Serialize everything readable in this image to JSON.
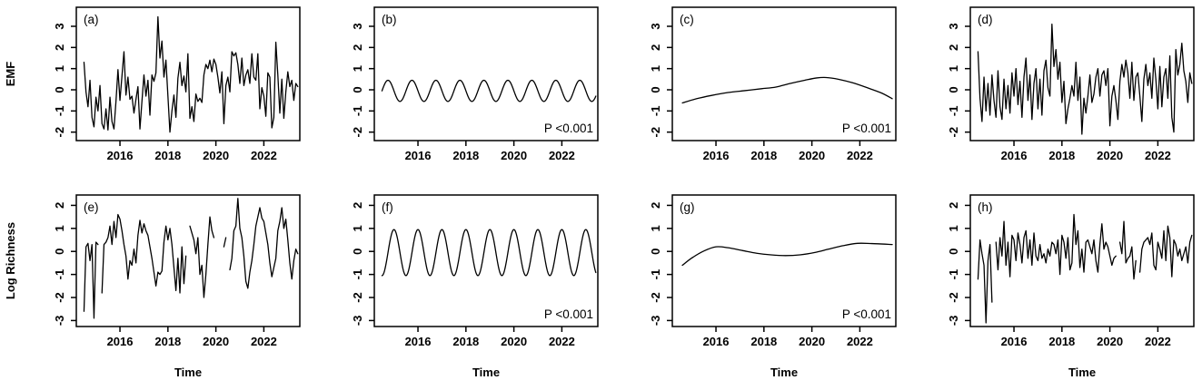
{
  "figure": {
    "background_color": "#ffffff",
    "line_color": "#000000",
    "axis_color": "#000000",
    "x_axis_label": "Time",
    "row_y_labels": [
      "EMF",
      "Log Richness"
    ],
    "significance_label": "P <0.001",
    "panel_letters": [
      "(a)",
      "(b)",
      "(c)",
      "(d)",
      "(e)",
      "(f)",
      "(g)",
      "(h)"
    ]
  },
  "chart_data": [
    {
      "id": "a",
      "type": "line",
      "letter": "(a)",
      "row": 0,
      "col": 0,
      "ylabel": "EMF",
      "xlabel": "",
      "ylim": [
        -2.4,
        3.9
      ],
      "yticks": [
        -2,
        -1,
        0,
        1,
        2,
        3
      ],
      "xlim": [
        2014.18,
        2023.5
      ],
      "xticks": [
        2016,
        2018,
        2020,
        2022
      ],
      "p_text": null,
      "series_kind": "monthly",
      "t_start": 2014.5,
      "values": [
        1.3,
        -0.1,
        -0.8,
        0.45,
        -1.3,
        -1.75,
        -0.35,
        -1.0,
        0.2,
        -1.6,
        -1.85,
        -0.9,
        -1.9,
        -0.35,
        -1.5,
        -1.85,
        -0.55,
        0.95,
        -0.5,
        0.65,
        1.8,
        -0.25,
        0.6,
        -0.45,
        -0.3,
        -1.1,
        -0.45,
        0.15,
        -1.85,
        -0.55,
        0.7,
        -0.3,
        0.45,
        -1.2,
        0.7,
        0.4,
        0.8,
        3.45,
        1.5,
        2.3,
        0.6,
        1.4,
        -0.3,
        -2.0,
        -1.0,
        -0.25,
        -1.3,
        0.55,
        1.3,
        0.2,
        0.65,
        -0.1,
        1.7,
        -1.35,
        -0.8,
        -1.5,
        -0.2,
        -0.55,
        -0.4,
        -0.6,
        0.7,
        1.2,
        1.0,
        1.4,
        0.85,
        1.45,
        1.2,
        0.6,
        -0.15,
        0.85,
        -1.6,
        0.2,
        0.6,
        -0.1,
        1.8,
        1.6,
        1.75,
        1.2,
        0.3,
        1.5,
        0.2,
        0.7,
        0.95,
        0.3,
        1.7,
        0.6,
        0.45,
        1.7,
        -0.9,
        0.1,
        -0.3,
        -1.25,
        0.8,
        0.6,
        -1.8,
        -1.3,
        2.25,
        0.7,
        -1.1,
        0.5,
        -1.35,
        -0.1,
        0.85,
        0.15,
        0.45,
        -0.5,
        0.3,
        0.15
      ]
    },
    {
      "id": "b",
      "type": "line",
      "letter": "(b)",
      "row": 0,
      "col": 1,
      "ylabel": "",
      "xlabel": "",
      "ylim": [
        -2.4,
        3.9
      ],
      "yticks": [
        -2,
        -1,
        0,
        1,
        2,
        3
      ],
      "xlim": [
        2014.18,
        2023.5
      ],
      "xticks": [
        2016,
        2018,
        2020,
        2022
      ],
      "p_text": "P <0.001",
      "series_kind": "seasonal",
      "t_start": 2014.5,
      "t_end": 2023.42,
      "seasonal": {
        "mean": -0.05,
        "amplitude": 0.5,
        "period_years": 1,
        "peak_at_year_fraction": 0.75
      }
    },
    {
      "id": "c",
      "type": "line",
      "letter": "(c)",
      "row": 0,
      "col": 2,
      "ylabel": "",
      "xlabel": "",
      "ylim": [
        -2.4,
        3.9
      ],
      "yticks": [
        -2,
        -1,
        0,
        1,
        2,
        3
      ],
      "xlim": [
        2014.18,
        2023.5
      ],
      "xticks": [
        2016,
        2018,
        2020,
        2022
      ],
      "p_text": "P <0.001",
      "series_kind": "trend",
      "trend_points": [
        [
          2014.6,
          -0.62
        ],
        [
          2015.2,
          -0.42
        ],
        [
          2015.8,
          -0.27
        ],
        [
          2016.5,
          -0.13
        ],
        [
          2017.2,
          -0.04
        ],
        [
          2017.9,
          0.05
        ],
        [
          2018.5,
          0.13
        ],
        [
          2019.1,
          0.3
        ],
        [
          2019.7,
          0.45
        ],
        [
          2020.2,
          0.56
        ],
        [
          2020.6,
          0.58
        ],
        [
          2021.1,
          0.5
        ],
        [
          2021.7,
          0.33
        ],
        [
          2022.3,
          0.1
        ],
        [
          2022.9,
          -0.15
        ],
        [
          2023.35,
          -0.42
        ]
      ]
    },
    {
      "id": "d",
      "type": "line",
      "letter": "(d)",
      "row": 0,
      "col": 3,
      "ylabel": "",
      "xlabel": "",
      "ylim": [
        -2.4,
        3.9
      ],
      "yticks": [
        -2,
        -1,
        0,
        1,
        2,
        3
      ],
      "xlim": [
        2014.18,
        2023.5
      ],
      "xticks": [
        2016,
        2018,
        2020,
        2022
      ],
      "p_text": null,
      "series_kind": "monthly",
      "t_start": 2014.5,
      "values": [
        1.8,
        -0.4,
        -1.5,
        0.6,
        -1.0,
        0.3,
        -1.2,
        0.7,
        -0.5,
        -1.3,
        0.9,
        -0.8,
        -1.4,
        0.5,
        -0.9,
        0.2,
        -1.1,
        0.8,
        -0.3,
        1.0,
        -0.7,
        0.4,
        -1.3,
        0.6,
        1.5,
        -0.5,
        0.7,
        -1.4,
        0.3,
        1.0,
        -0.9,
        0.5,
        -1.2,
        0.9,
        1.4,
        0.1,
        -0.3,
        3.1,
        1.1,
        1.9,
        0.5,
        1.3,
        -0.6,
        0.4,
        -1.6,
        -0.9,
        -0.4,
        0.2,
        -0.3,
        1.3,
        -0.5,
        0.6,
        -2.1,
        -0.4,
        -1.1,
        -0.3,
        0.7,
        -0.6,
        -0.2,
        0.6,
        1.0,
        -0.3,
        0.7,
        0.9,
        0.2,
        1.0,
        -1.7,
        -0.3,
        0.2,
        -0.5,
        -1.4,
        0.4,
        1.2,
        0.6,
        1.4,
        0.8,
        -0.4,
        1.3,
        -0.5,
        0.6,
        0.8,
        -0.3,
        -1.5,
        0.5,
        1.2,
        0.2,
        0.8,
        -0.4,
        1.5,
        0.5,
        -0.9,
        1.1,
        -0.8,
        0.6,
        1.0,
        -0.4,
        1.6,
        -1.3,
        -2.0,
        1.9,
        0.7,
        1.2,
        2.2,
        0.9,
        0.4,
        -0.6,
        0.8,
        0.3
      ]
    },
    {
      "id": "e",
      "type": "line",
      "letter": "(e)",
      "row": 1,
      "col": 0,
      "ylabel": "Log Richness",
      "xlabel": "Time",
      "ylim": [
        -3.26,
        2.45
      ],
      "yticks": [
        -3,
        -2,
        -1,
        0,
        1,
        2
      ],
      "xlim": [
        2014.18,
        2023.5
      ],
      "xticks": [
        2016,
        2018,
        2020,
        2022
      ],
      "p_text": null,
      "series_kind": "monthly",
      "t_start": 2014.5,
      "values": [
        -2.6,
        0.2,
        0.35,
        -0.4,
        0.3,
        -2.9,
        0.4,
        0.3,
        null,
        -1.8,
        0.3,
        0.4,
        0.6,
        1.1,
        0.3,
        1.3,
        0.6,
        1.6,
        1.4,
        0.9,
        0.3,
        -0.2,
        -1.2,
        -0.4,
        -0.6,
        0.1,
        -0.5,
        0.7,
        1.35,
        0.8,
        1.2,
        0.9,
        0.7,
        0.2,
        -0.3,
        -0.9,
        -1.5,
        -0.9,
        -1.0,
        -0.85,
        0.4,
        1.1,
        0.5,
        1.0,
        0.3,
        -0.7,
        -1.7,
        -0.3,
        -1.8,
        0.2,
        -1.4,
        -0.2,
        null,
        1.1,
        0.8,
        0.5,
        -0.1,
        0.6,
        -1.0,
        -0.6,
        -2.0,
        -1.0,
        0.3,
        1.5,
        0.9,
        0.6,
        null,
        0.3,
        null,
        null,
        0.2,
        0.6,
        null,
        -0.8,
        -0.3,
        0.9,
        1.1,
        2.3,
        1.0,
        0.6,
        -0.2,
        -1.3,
        -1.6,
        -0.9,
        -0.4,
        0.3,
        1.1,
        1.5,
        1.9,
        1.45,
        1.3,
        0.8,
        0.3,
        -0.5,
        -1.1,
        -0.7,
        -0.3,
        0.9,
        1.3,
        1.9,
        1.0,
        1.4,
        0.5,
        -0.5,
        -1.2,
        -0.4,
        0.1,
        -0.1
      ]
    },
    {
      "id": "f",
      "type": "line",
      "letter": "(f)",
      "row": 1,
      "col": 1,
      "ylabel": "",
      "xlabel": "Time",
      "ylim": [
        -3.26,
        2.45
      ],
      "yticks": [
        -3,
        -2,
        -1,
        0,
        1,
        2
      ],
      "xlim": [
        2014.18,
        2023.5
      ],
      "xticks": [
        2016,
        2018,
        2020,
        2022
      ],
      "p_text": "P <0.001",
      "series_kind": "seasonal",
      "t_start": 2014.5,
      "t_end": 2023.42,
      "seasonal": {
        "mean": -0.05,
        "amplitude": 1.0,
        "period_years": 1,
        "peak_at_year_fraction": 0.0
      }
    },
    {
      "id": "g",
      "type": "line",
      "letter": "(g)",
      "row": 1,
      "col": 2,
      "ylabel": "",
      "xlabel": "Time",
      "ylim": [
        -3.26,
        2.45
      ],
      "yticks": [
        -3,
        -2,
        -1,
        0,
        1,
        2
      ],
      "xlim": [
        2014.18,
        2023.5
      ],
      "xticks": [
        2016,
        2018,
        2020,
        2022
      ],
      "p_text": "P <0.001",
      "series_kind": "trend",
      "trend_points": [
        [
          2014.6,
          -0.6
        ],
        [
          2015.0,
          -0.28
        ],
        [
          2015.5,
          0.02
        ],
        [
          2016.0,
          0.2
        ],
        [
          2016.5,
          0.16
        ],
        [
          2017.1,
          0.04
        ],
        [
          2017.7,
          -0.08
        ],
        [
          2018.3,
          -0.15
        ],
        [
          2018.9,
          -0.18
        ],
        [
          2019.5,
          -0.15
        ],
        [
          2020.1,
          -0.05
        ],
        [
          2020.7,
          0.1
        ],
        [
          2021.3,
          0.25
        ],
        [
          2021.9,
          0.35
        ],
        [
          2022.5,
          0.34
        ],
        [
          2023.35,
          0.3
        ]
      ]
    },
    {
      "id": "h",
      "type": "line",
      "letter": "(h)",
      "row": 1,
      "col": 3,
      "ylabel": "",
      "xlabel": "Time",
      "ylim": [
        -3.26,
        2.45
      ],
      "yticks": [
        -3,
        -2,
        -1,
        0,
        1,
        2
      ],
      "xlim": [
        2014.18,
        2023.5
      ],
      "xticks": [
        2016,
        2018,
        2020,
        2022
      ],
      "p_text": null,
      "series_kind": "monthly",
      "t_start": 2014.5,
      "values": [
        -1.2,
        0.5,
        -0.1,
        -0.6,
        -3.1,
        -0.4,
        0.3,
        -2.2,
        null,
        0.4,
        -0.8,
        0.6,
        -0.2,
        1.3,
        -0.6,
        0.4,
        -1.1,
        0.7,
        0.5,
        -0.4,
        0.8,
        0.3,
        -0.5,
        0.6,
        0.9,
        -0.3,
        0.5,
        -0.6,
        0.8,
        -0.2,
        -0.4,
        0.3,
        -0.3,
        -0.1,
        -0.5,
        0.1,
        -0.2,
        0.4,
        0.3,
        -0.1,
        0.5,
        -1.0,
        0.7,
        0.4,
        -0.3,
        0.6,
        -0.8,
        -0.5,
        1.6,
        0.3,
        0.9,
        -0.7,
        0.1,
        -0.9,
        0.4,
        0.5,
        0.2,
        -0.1,
        0.5,
        -0.4,
        -0.9,
        0.3,
        1.2,
        0.1,
        0.4,
        0.2,
        -0.2,
        -0.6,
        -0.3,
        -0.2,
        null,
        0.4,
        -0.1,
        1.3,
        -0.5,
        -0.3,
        -0.2,
        0.2,
        -1.2,
        -0.4,
        null,
        -0.9,
        0.1,
        0.4,
        0.5,
        0.6,
        0.3,
        0.8,
        -0.6,
        -0.8,
        0.4,
        0.1,
        -0.3,
        0.9,
        -0.4,
        1.1,
        0.6,
        -1.1,
        0.5,
        0.3,
        -0.2,
        0.1,
        -0.4,
        -0.1,
        0.2,
        -0.5,
        0.4,
        0.7
      ]
    }
  ]
}
